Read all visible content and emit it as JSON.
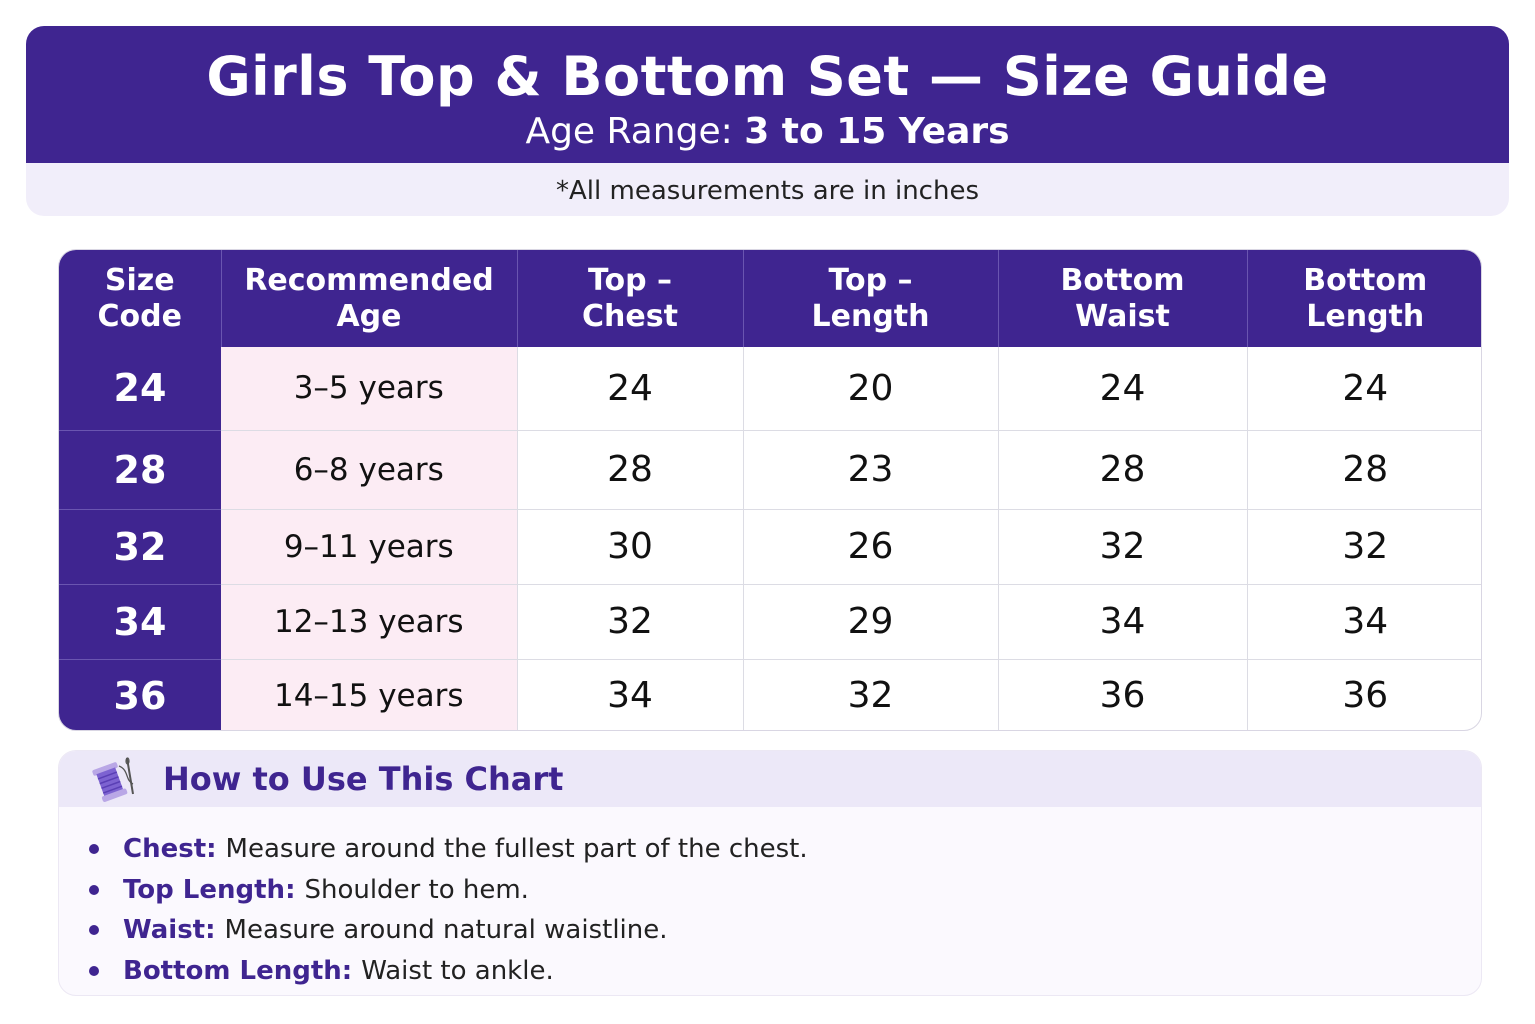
{
  "header": {
    "title": "Girls Top & Bottom Set — Size Guide",
    "subtitle_label": "Age Range:",
    "subtitle_value": "3 to 15 Years",
    "note": "*All measurements are in inches"
  },
  "table": {
    "columns": [
      [
        "Size",
        "Code"
      ],
      [
        "Recommended",
        "Age"
      ],
      [
        "Top –",
        "Chest"
      ],
      [
        "Top –",
        "Length"
      ],
      [
        "Bottom",
        "Waist"
      ],
      [
        "Bottom",
        "Length"
      ]
    ],
    "rows": [
      [
        "24",
        "3–5 years",
        "24",
        "20",
        "24",
        "24"
      ],
      [
        "28",
        "6–8 years",
        "28",
        "23",
        "28",
        "28"
      ],
      [
        "32",
        "9–11 years",
        "30",
        "26",
        "32",
        "32"
      ],
      [
        "34",
        "12–13 years",
        "32",
        "29",
        "34",
        "34"
      ],
      [
        "36",
        "14–15 years",
        "34",
        "32",
        "36",
        "36"
      ]
    ]
  },
  "howto": {
    "icon": "thread-spool-needle-icon",
    "title": "How to Use This Chart",
    "items": [
      {
        "term": "Chest:",
        "text": "Measure around the fullest part of the chest."
      },
      {
        "term": "Top Length:",
        "text": "Shoulder to hem."
      },
      {
        "term": "Waist:",
        "text": "Measure around natural waistline."
      },
      {
        "term": "Bottom Length:",
        "text": "Waist to ankle."
      }
    ]
  },
  "colors": {
    "primary": "#3f2590",
    "age_column_bg": "#fcecf4",
    "note_bg": "#f1eefa"
  }
}
